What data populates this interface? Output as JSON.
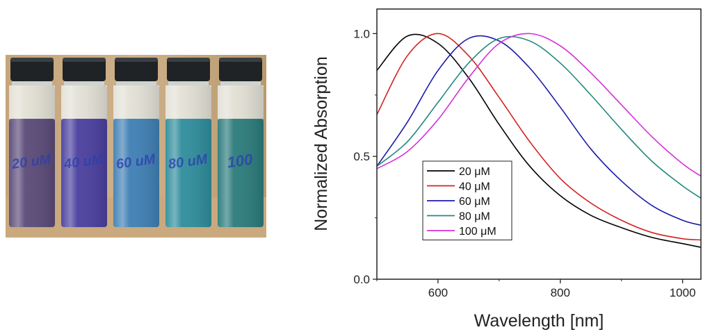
{
  "photo": {
    "vials": [
      {
        "label": "20 uM",
        "color": "#5a4a78"
      },
      {
        "label": "40 uM",
        "color": "#4a3f9e"
      },
      {
        "label": "60 uM",
        "color": "#3f7fb4"
      },
      {
        "label": "80 uM",
        "color": "#2f8d9c"
      },
      {
        "label": "100",
        "color": "#2b7b7b"
      }
    ],
    "cap_color": "#1f2326",
    "background_color": "#caa878"
  },
  "chart_data": {
    "type": "line",
    "title": "",
    "xlabel": "Wavelength [nm]",
    "ylabel": "Normalized  Absorption",
    "xlim": [
      500,
      1030
    ],
    "ylim": [
      0.0,
      1.1
    ],
    "xticks": [
      600,
      800,
      1000
    ],
    "xtick_labels": [
      "600",
      "800",
      "1000"
    ],
    "yticks": [
      0.0,
      0.5,
      1.0
    ],
    "ytick_labels": [
      "0.0",
      "0.5",
      "1.0"
    ],
    "grid": false,
    "legend_position": "bottom-left",
    "x": [
      500,
      550,
      600,
      650,
      700,
      750,
      800,
      850,
      900,
      950,
      1000,
      1030
    ],
    "series": [
      {
        "name": "20 μM",
        "color": "#000000",
        "values": [
          0.85,
          0.99,
          0.96,
          0.82,
          0.63,
          0.46,
          0.34,
          0.26,
          0.21,
          0.17,
          0.145,
          0.13
        ]
      },
      {
        "name": "40 μM",
        "color": "#d42020",
        "values": [
          0.67,
          0.91,
          1.0,
          0.91,
          0.74,
          0.56,
          0.41,
          0.31,
          0.24,
          0.19,
          0.165,
          0.16
        ]
      },
      {
        "name": "60 μM",
        "color": "#1a1aa8",
        "values": [
          0.46,
          0.64,
          0.85,
          0.98,
          0.97,
          0.86,
          0.7,
          0.53,
          0.4,
          0.3,
          0.24,
          0.22
        ]
      },
      {
        "name": "80 μM",
        "color": "#208a80",
        "values": [
          0.46,
          0.56,
          0.72,
          0.88,
          0.98,
          0.97,
          0.88,
          0.75,
          0.61,
          0.48,
          0.38,
          0.33
        ]
      },
      {
        "name": "100 μM",
        "color": "#d52fd5",
        "values": [
          0.45,
          0.52,
          0.65,
          0.82,
          0.96,
          1.0,
          0.95,
          0.84,
          0.71,
          0.58,
          0.47,
          0.42
        ]
      }
    ]
  }
}
